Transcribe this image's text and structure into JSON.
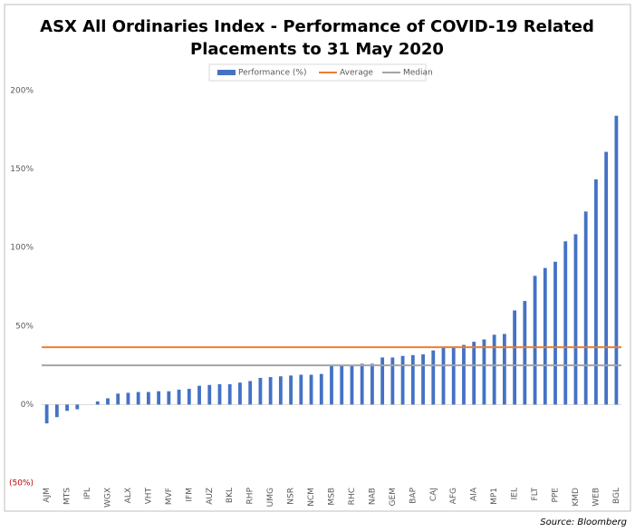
{
  "chart_data": {
    "type": "bar",
    "title": "ASX All Ordinaries Index - Performance of COVID-19 Related",
    "subtitle": "Placements to 31 May 2020",
    "source": "Source: Bloomberg",
    "categories": [
      "AJM",
      null,
      "MTS",
      null,
      "IPL",
      null,
      "WGX",
      null,
      "ALX",
      null,
      "VHT",
      null,
      "MVF",
      null,
      "IFM",
      null,
      "AUZ",
      null,
      "BKL",
      null,
      "RHP",
      null,
      "UMG",
      null,
      "NSR",
      null,
      "NCM",
      null,
      "MSB",
      null,
      "RHC",
      null,
      "NAB",
      null,
      "GEM",
      null,
      "BAP",
      null,
      "CAJ",
      null,
      "AFG",
      null,
      "AIA",
      null,
      "MP1",
      null,
      "IEL",
      null,
      "FLT",
      null,
      "PPE",
      null,
      "KMD",
      null,
      "WEB",
      null,
      "BGL"
    ],
    "series": [
      {
        "name": "Performance (%)",
        "color": "#4472c4",
        "values": [
          -12,
          -8,
          -4,
          -3,
          0,
          2,
          4,
          7,
          7.5,
          8,
          8,
          8.5,
          8.5,
          9.5,
          10,
          12,
          12.5,
          13,
          13,
          14,
          15,
          17,
          17.5,
          18,
          18.5,
          19,
          19,
          19.5,
          24.5,
          25,
          25,
          26,
          26,
          30,
          30,
          31,
          31.5,
          32,
          34.5,
          36.5,
          37,
          38,
          40,
          41.5,
          44.5,
          45,
          60,
          66,
          82,
          87,
          91,
          104,
          108.5,
          123,
          143.5,
          161,
          184
        ]
      }
    ],
    "reference_lines": [
      {
        "name": "Average",
        "color": "#ed7d31",
        "value": 36.5
      },
      {
        "name": "Median",
        "color": "#a5a5a5",
        "value": 25
      }
    ],
    "ylim": [
      -50,
      200
    ],
    "yticks": [
      {
        "value": -50,
        "label": "(50%)"
      },
      {
        "value": 0,
        "label": "0%"
      },
      {
        "value": 50,
        "label": "50%"
      },
      {
        "value": 100,
        "label": "100%"
      },
      {
        "value": 150,
        "label": "150%"
      },
      {
        "value": 200,
        "label": "200%"
      }
    ],
    "negative_tick_color": "#c00000",
    "grid": false,
    "legend": "top"
  }
}
